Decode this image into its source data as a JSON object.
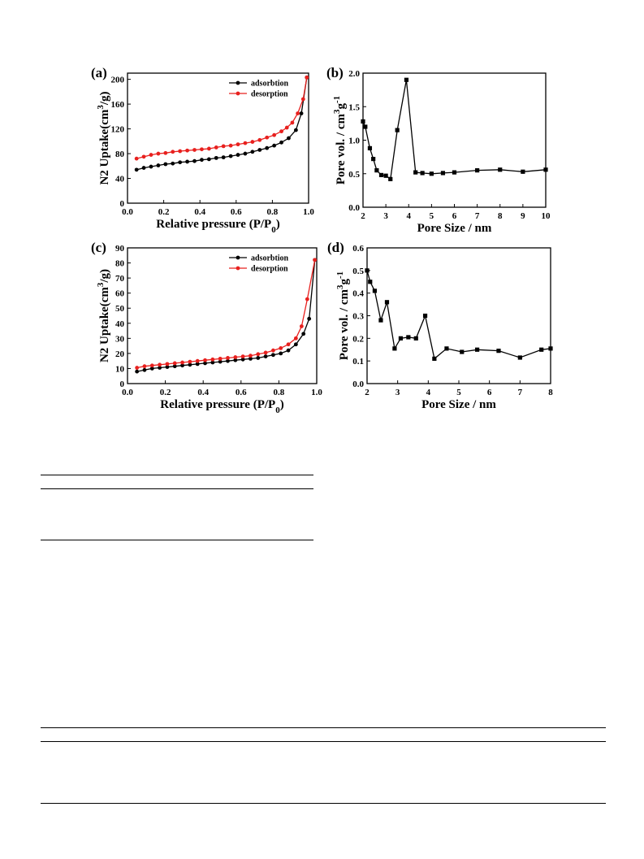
{
  "panels": [
    {
      "id": "a",
      "label": "(a)",
      "chart_data": {
        "type": "line",
        "xlabel": "Relative pressure (P/P0)",
        "ylabel": "N2 Uptake(cm3/g)",
        "xlim": [
          0.0,
          1.0
        ],
        "ylim": [
          0,
          210
        ],
        "x_ticks": [
          0.0,
          0.2,
          0.4,
          0.6,
          0.8,
          1.0
        ],
        "x_tick_labels": [
          "0.0",
          "0.2",
          "0.4",
          "0.6",
          "0.8",
          "1.0"
        ],
        "y_ticks": [
          0,
          40,
          80,
          120,
          160,
          200
        ],
        "y_tick_labels": [
          "0",
          "40",
          "80",
          "120",
          "160",
          "200"
        ],
        "legend": "top-right",
        "series": [
          {
            "name": "adsorbtion",
            "color": "#000000",
            "x": [
              0.05,
              0.09,
              0.13,
              0.17,
              0.21,
              0.25,
              0.29,
              0.33,
              0.37,
              0.41,
              0.45,
              0.49,
              0.53,
              0.57,
              0.61,
              0.65,
              0.69,
              0.73,
              0.77,
              0.81,
              0.85,
              0.89,
              0.93,
              0.96,
              0.99
            ],
            "y": [
              54,
              57,
              59,
              61,
              63,
              64,
              66,
              67,
              68,
              70,
              71,
              73,
              74,
              76,
              78,
              80,
              83,
              86,
              89,
              93,
              98,
              105,
              118,
              145,
              203
            ]
          },
          {
            "name": "desorption",
            "color": "#e8201e",
            "x": [
              0.05,
              0.09,
              0.13,
              0.17,
              0.21,
              0.25,
              0.29,
              0.33,
              0.37,
              0.41,
              0.45,
              0.49,
              0.53,
              0.57,
              0.61,
              0.65,
              0.69,
              0.73,
              0.77,
              0.81,
              0.85,
              0.88,
              0.91,
              0.94,
              0.97,
              0.99
            ],
            "y": [
              72,
              75,
              78,
              80,
              81,
              83,
              84,
              85,
              86,
              87,
              88,
              90,
              92,
              93,
              95,
              97,
              99,
              102,
              106,
              110,
              116,
              122,
              130,
              145,
              168,
              203
            ]
          }
        ]
      }
    },
    {
      "id": "b",
      "label": "(b)",
      "chart_data": {
        "type": "line",
        "xlabel": "Pore Size / nm",
        "ylabel": "Pore vol. / cm3g-1",
        "xlim": [
          2,
          10
        ],
        "ylim": [
          0.0,
          2.0
        ],
        "x_ticks": [
          2,
          3,
          4,
          5,
          6,
          7,
          8,
          9,
          10
        ],
        "x_tick_labels": [
          "2",
          "3",
          "4",
          "5",
          "6",
          "7",
          "8",
          "9",
          "10"
        ],
        "y_ticks": [
          0.0,
          0.5,
          1.0,
          1.5,
          2.0
        ],
        "y_tick_labels": [
          "0.0",
          "0.5",
          "1.0",
          "1.5",
          "2.0"
        ],
        "series": [
          {
            "color": "#000000",
            "x": [
              2.0,
              2.1,
              2.3,
              2.45,
              2.6,
              2.8,
              3.0,
              3.2,
              3.5,
              3.9,
              4.3,
              4.6,
              5.0,
              5.5,
              6.0,
              7.0,
              8.0,
              9.0,
              10.0
            ],
            "y": [
              1.28,
              1.2,
              0.88,
              0.72,
              0.55,
              0.48,
              0.47,
              0.42,
              1.15,
              1.9,
              0.52,
              0.51,
              0.5,
              0.51,
              0.52,
              0.55,
              0.56,
              0.53,
              0.56
            ]
          }
        ]
      }
    },
    {
      "id": "c",
      "label": "(c)",
      "chart_data": {
        "type": "line",
        "xlabel": "Relative pressure (P/P0)",
        "ylabel": "N2 Uptake(cm3/g)",
        "xlim": [
          0.0,
          1.0
        ],
        "ylim": [
          0,
          90
        ],
        "x_ticks": [
          0.0,
          0.2,
          0.4,
          0.6,
          0.8,
          1.0
        ],
        "x_tick_labels": [
          "0.0",
          "0.2",
          "0.4",
          "0.6",
          "0.8",
          "1.0"
        ],
        "y_ticks": [
          0,
          10,
          20,
          30,
          40,
          50,
          60,
          70,
          80,
          90
        ],
        "y_tick_labels": [
          "0",
          "10",
          "20",
          "30",
          "40",
          "50",
          "60",
          "70",
          "80",
          "90"
        ],
        "legend": "top-right",
        "series": [
          {
            "name": "adsorbtion",
            "color": "#000000",
            "x": [
              0.05,
              0.09,
              0.13,
              0.17,
              0.21,
              0.25,
              0.29,
              0.33,
              0.37,
              0.41,
              0.45,
              0.49,
              0.53,
              0.57,
              0.61,
              0.65,
              0.69,
              0.73,
              0.77,
              0.81,
              0.85,
              0.89,
              0.93,
              0.96,
              0.99
            ],
            "y": [
              8,
              9,
              10,
              10.5,
              11,
              11.5,
              12,
              12.5,
              13,
              13.5,
              14,
              14.5,
              15,
              15.5,
              16,
              16.5,
              17,
              18,
              19,
              20,
              22,
              26,
              33,
              43,
              82
            ]
          },
          {
            "name": "desorption",
            "color": "#e8201e",
            "x": [
              0.05,
              0.09,
              0.13,
              0.17,
              0.21,
              0.25,
              0.29,
              0.33,
              0.37,
              0.41,
              0.45,
              0.49,
              0.53,
              0.57,
              0.61,
              0.65,
              0.69,
              0.73,
              0.77,
              0.81,
              0.85,
              0.89,
              0.92,
              0.95,
              0.99
            ],
            "y": [
              10.5,
              11.5,
              12,
              12.5,
              13,
              13.5,
              14,
              14.5,
              15,
              15.5,
              16,
              16.5,
              17,
              17.5,
              18,
              18.5,
              19.5,
              20.5,
              22,
              23.5,
              26,
              30,
              38,
              56,
              82
            ]
          }
        ]
      }
    },
    {
      "id": "d",
      "label": "(d)",
      "chart_data": {
        "type": "line",
        "xlabel": "Pore Size / nm",
        "ylabel": "Pore vol. / cm3g-1",
        "xlim": [
          2,
          8
        ],
        "ylim": [
          0.0,
          0.6
        ],
        "x_ticks": [
          2,
          3,
          4,
          5,
          6,
          7,
          8
        ],
        "x_tick_labels": [
          "2",
          "3",
          "4",
          "5",
          "6",
          "7",
          "8"
        ],
        "y_ticks": [
          0.0,
          0.1,
          0.2,
          0.3,
          0.4,
          0.5,
          0.6
        ],
        "y_tick_labels": [
          "0.0",
          "0.1",
          "0.2",
          "0.3",
          "0.4",
          "0.5",
          "0.6"
        ],
        "series": [
          {
            "color": "#000000",
            "x": [
              2.0,
              2.1,
              2.25,
              2.45,
              2.65,
              2.9,
              3.1,
              3.35,
              3.6,
              3.9,
              4.2,
              4.6,
              5.1,
              5.6,
              6.3,
              7.0,
              7.7,
              8.0
            ],
            "y": [
              0.5,
              0.45,
              0.41,
              0.28,
              0.36,
              0.155,
              0.2,
              0.205,
              0.2,
              0.3,
              0.11,
              0.155,
              0.14,
              0.15,
              0.145,
              0.115,
              0.15,
              0.155
            ]
          }
        ]
      }
    }
  ]
}
